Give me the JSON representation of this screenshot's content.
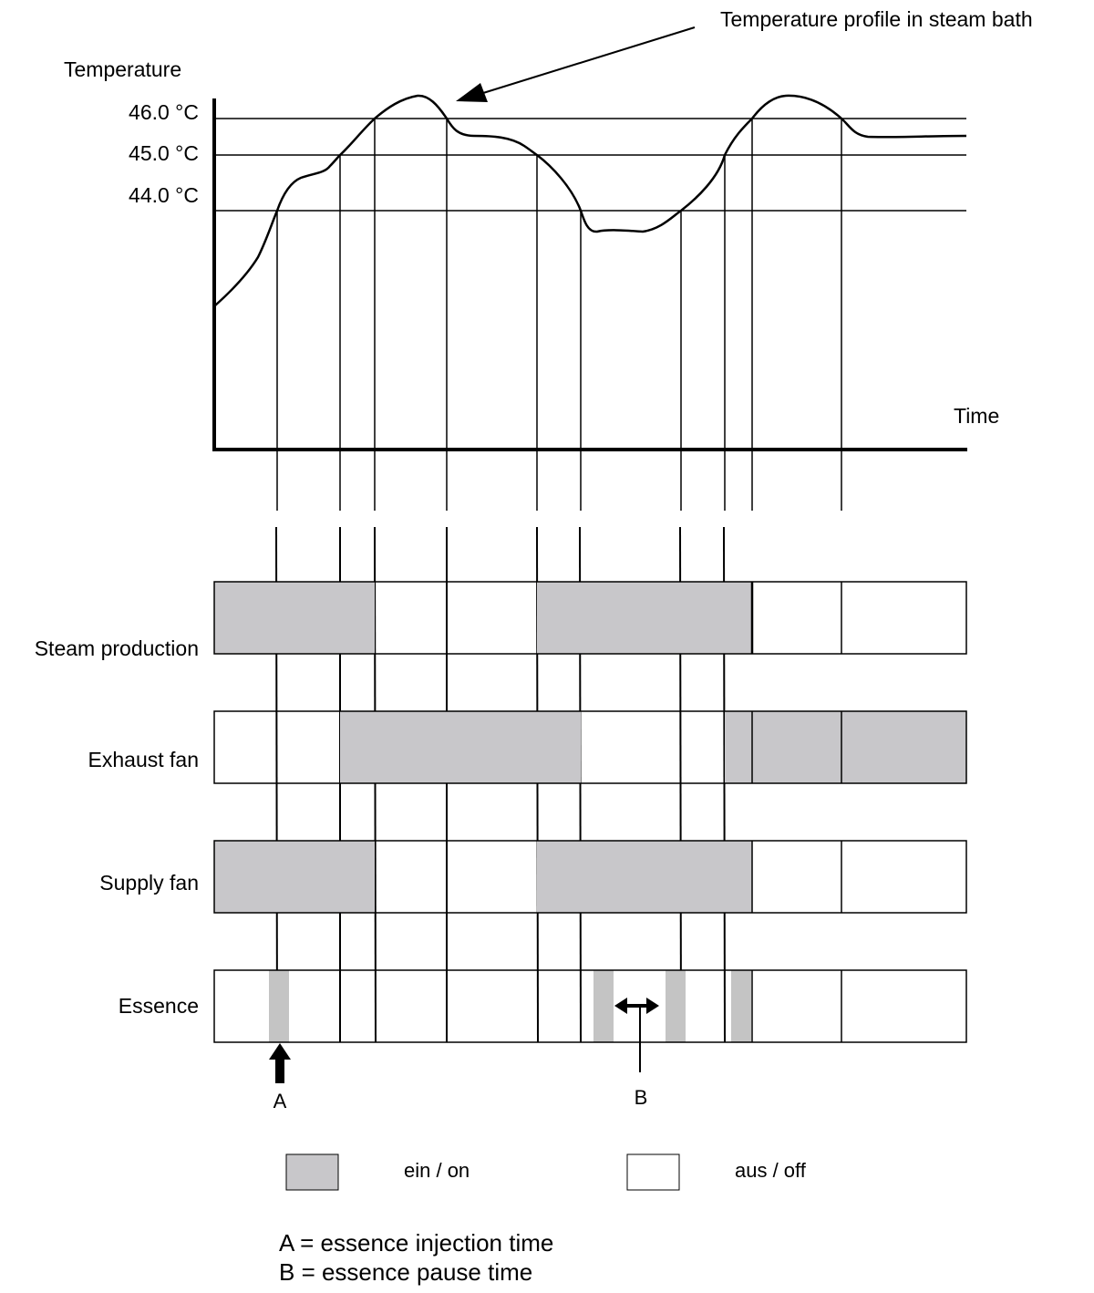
{
  "labels": {
    "profile_callout": "Temperature profile in steam bath",
    "y_axis": "Temperature",
    "x_axis": "Time",
    "a_marker": "A",
    "b_marker": "B"
  },
  "temperature_levels": [
    "46.0 °C",
    "45.0 °C",
    "44.0 °C"
  ],
  "rows": [
    {
      "name": "steam-production-row",
      "label": "Steam production"
    },
    {
      "name": "exhaust-fan-row",
      "label": "Exhaust fan"
    },
    {
      "name": "supply-fan-row",
      "label": "Supply fan"
    },
    {
      "name": "essence-row",
      "label": "Essence"
    }
  ],
  "legend": {
    "on": "ein / on",
    "off": "aus / off"
  },
  "notes": [
    "A = essence injection time",
    "B = essence pause time"
  ],
  "colors": {
    "on_fill": "#c8c7ca",
    "essence_fill": "#c4c4c4",
    "line": "#000000",
    "background": "#ffffff"
  }
}
